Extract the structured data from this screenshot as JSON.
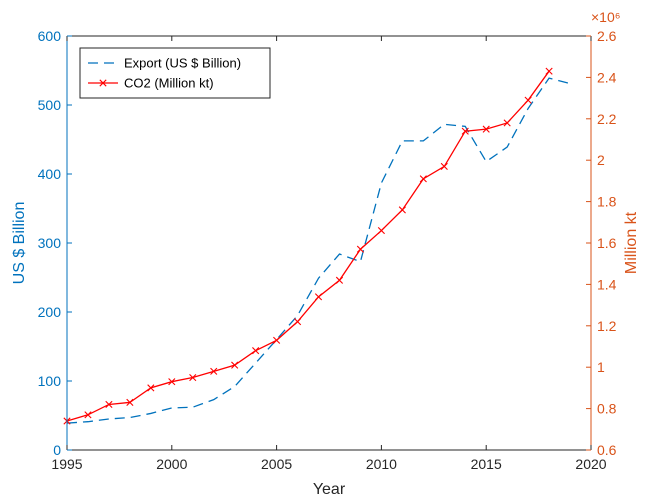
{
  "chart_data": {
    "type": "line",
    "xlabel": "Year",
    "xlim": [
      1995,
      2020
    ],
    "xticks": [
      1995,
      2000,
      2005,
      2010,
      2015,
      2020
    ],
    "y_left": {
      "label": "US $ Billion",
      "lim": [
        0,
        600
      ],
      "ticks": [
        0,
        100,
        200,
        300,
        400,
        500,
        600
      ],
      "color": "#0072BD"
    },
    "y_right": {
      "label": "Million kt",
      "lim": [
        0.6,
        2.6
      ],
      "ticks": [
        0.6,
        0.8,
        1,
        1.2,
        1.4,
        1.6,
        1.8,
        2,
        2.2,
        2.4,
        2.6
      ],
      "tick_labels": [
        "0.6",
        "0.8",
        "1",
        "1.2",
        "1.4",
        "1.6",
        "1.8",
        "2",
        "2.2",
        "2.4",
        "2.6"
      ],
      "exponent_label": "×10⁶",
      "color": "#D95319"
    },
    "legend": {
      "placement": "top-left"
    },
    "series": [
      {
        "name": "Export (US $ Billion)",
        "axis": "left",
        "color": "#0072BD",
        "style": "dashed",
        "x": [
          1995,
          1996,
          1997,
          1998,
          1999,
          2000,
          2001,
          2002,
          2003,
          2004,
          2005,
          2006,
          2007,
          2008,
          2009,
          2010,
          2011,
          2012,
          2013,
          2014,
          2015,
          2016,
          2017,
          2018,
          2019
        ],
        "values": [
          39,
          41,
          45,
          47,
          53,
          61,
          62,
          73,
          92,
          126,
          160,
          195,
          249,
          284,
          273,
          387,
          448,
          448,
          472,
          469,
          418,
          439,
          495,
          539,
          531
        ]
      },
      {
        "name": "CO2 (Million kt)",
        "axis": "right",
        "color": "#FF0000",
        "style": "solid-x",
        "x": [
          1995,
          1996,
          1997,
          1998,
          1999,
          2000,
          2001,
          2002,
          2003,
          2004,
          2005,
          2006,
          2007,
          2008,
          2009,
          2010,
          2011,
          2012,
          2013,
          2014,
          2015,
          2016,
          2017,
          2018
        ],
        "values": [
          0.74,
          0.77,
          0.82,
          0.83,
          0.9,
          0.93,
          0.95,
          0.98,
          1.01,
          1.08,
          1.13,
          1.22,
          1.34,
          1.42,
          1.57,
          1.66,
          1.76,
          1.91,
          1.97,
          2.14,
          2.15,
          2.18,
          2.29,
          2.43
        ]
      }
    ]
  }
}
